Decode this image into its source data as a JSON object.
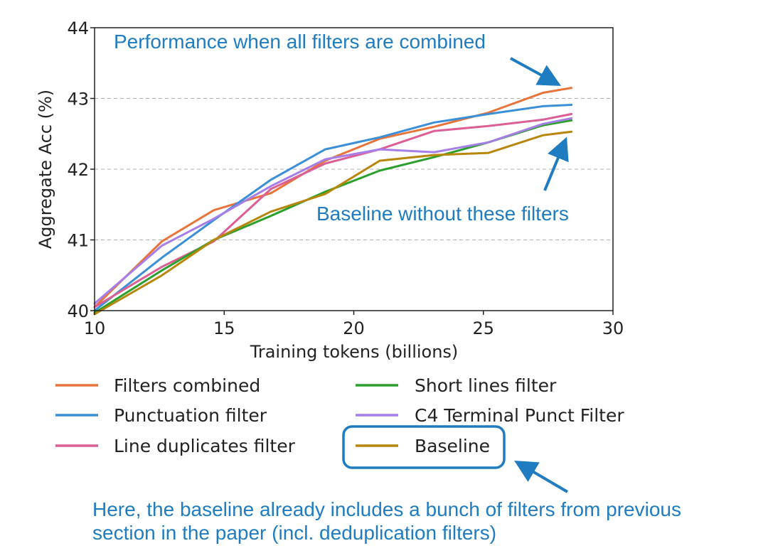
{
  "chart_data": {
    "type": "line",
    "xlabel": "Training tokens (billions)",
    "ylabel": "Aggregate Acc (%)",
    "xlim": [
      10,
      30
    ],
    "ylim": [
      40,
      44
    ],
    "xticks": [
      "10",
      "15",
      "20",
      "25",
      "30"
    ],
    "yticks": [
      "40",
      "41",
      "42",
      "43",
      "44"
    ],
    "grid": "horizontal dashed",
    "legend_placement": "below chart, two columns",
    "series": [
      {
        "name": "Filters combined",
        "color": "#e8743b",
        "x": [
          10,
          12.6,
          14.6,
          16.8,
          18.9,
          21.0,
          23.1,
          25.2,
          27.3,
          28.4
        ],
        "y": [
          40.05,
          40.98,
          41.42,
          41.66,
          42.12,
          42.43,
          42.6,
          42.8,
          43.08,
          43.15
        ]
      },
      {
        "name": "Punctuation filter",
        "color": "#3a8fd6",
        "x": [
          10,
          12.6,
          14.6,
          16.8,
          18.9,
          21.0,
          23.1,
          25.2,
          27.3,
          28.4
        ],
        "y": [
          40.0,
          40.75,
          41.28,
          41.85,
          42.28,
          42.45,
          42.66,
          42.78,
          42.89,
          42.91
        ]
      },
      {
        "name": "Line duplicates filter",
        "color": "#db5f96",
        "x": [
          10,
          12.6,
          14.6,
          16.8,
          18.9,
          21.0,
          23.1,
          25.2,
          27.3,
          28.4
        ],
        "y": [
          40.05,
          40.62,
          40.98,
          41.72,
          42.08,
          42.28,
          42.54,
          42.61,
          42.7,
          42.78
        ]
      },
      {
        "name": "Short lines filter",
        "color": "#2ca02c",
        "x": [
          10,
          12.6,
          14.6,
          16.8,
          18.9,
          21.0,
          23.1,
          25.2,
          27.3,
          28.4
        ],
        "y": [
          39.97,
          40.57,
          41.0,
          41.34,
          41.68,
          41.98,
          42.17,
          42.38,
          42.62,
          42.69
        ]
      },
      {
        "name": "C4 Terminal Punct Filter",
        "color": "#a67ee8",
        "x": [
          10,
          12.6,
          14.6,
          16.8,
          18.9,
          21.0,
          23.1,
          25.2,
          27.3,
          28.4
        ],
        "y": [
          40.1,
          40.92,
          41.3,
          41.76,
          42.14,
          42.28,
          42.24,
          42.38,
          42.64,
          42.72
        ]
      },
      {
        "name": "Baseline",
        "color": "#b8860b",
        "x": [
          10,
          12.6,
          14.6,
          16.8,
          18.9,
          21.0,
          23.1,
          25.2,
          27.3,
          28.4
        ],
        "y": [
          39.95,
          40.5,
          41.0,
          41.4,
          41.65,
          42.12,
          42.2,
          42.23,
          42.48,
          42.53
        ]
      }
    ],
    "annotations": [
      {
        "text": "Performance when all filters are combined",
        "points_to": "Filters combined"
      },
      {
        "text": "Baseline without these filters",
        "points_to": "Baseline"
      }
    ]
  },
  "legend": {
    "items": [
      {
        "label": "Filters combined",
        "color": "#e8743b"
      },
      {
        "label": "Punctuation filter",
        "color": "#3a8fd6"
      },
      {
        "label": "Line duplicates filter",
        "color": "#db5f96"
      },
      {
        "label": "Short lines filter",
        "color": "#2ca02c"
      },
      {
        "label": "C4 Terminal Punct Filter",
        "color": "#a67ee8"
      },
      {
        "label": "Baseline",
        "color": "#b8860b",
        "highlighted": true
      }
    ]
  },
  "note": {
    "line1": "Here, the baseline already includes a bunch of filters from previous",
    "line2": "section in the paper (incl. deduplication filters)"
  },
  "colors": {
    "annotation": "#1f7cc0"
  }
}
